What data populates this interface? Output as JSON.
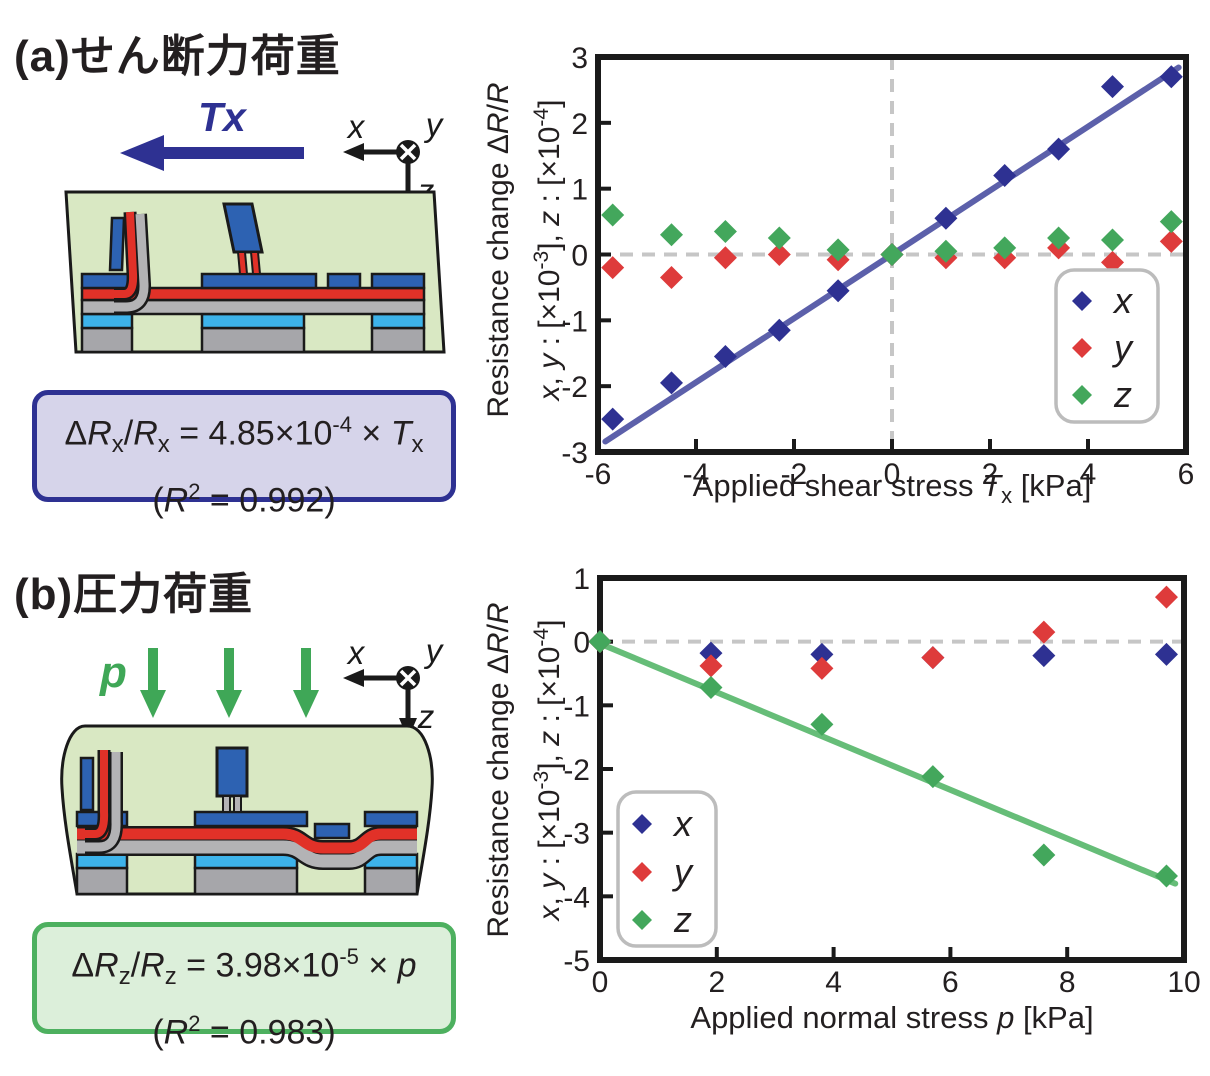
{
  "panel_a": {
    "title": "(a)せん断力荷重",
    "force_label": "Tx",
    "axis_widget": {
      "x": "x",
      "y": "y",
      "z": "z"
    },
    "equation_line1_html": "Δ<i>R</i><sub>x</sub>/<i>R</i><sub>x</sub> = 4.85×10<sup>-4</sup> × <i>T</i><sub>x</sub>",
    "equation_line2_html": "(<i>R</i><sup>2</sup> = 0.992)"
  },
  "panel_b": {
    "title": "(b)圧力荷重",
    "force_label": "p",
    "axis_widget": {
      "x": "x",
      "y": "y",
      "z": "z"
    },
    "equation_line1_html": "Δ<i>R</i><sub>z</sub>/<i>R</i><sub>z</sub> = 3.98×10<sup>-5</sup> × <i>p</i>",
    "equation_line2_html": "(<i>R</i><sup>2</sup> = 0.983)"
  },
  "colors": {
    "series_x": "#2e3192",
    "series_y": "#de3b3b",
    "series_z": "#43a75c",
    "fit_blue": "#5c60aa",
    "fit_green": "#66bd78",
    "grid_dash": "#c6c6c6",
    "frame": "#1a1a1a",
    "legend_border": "#bcbcbc",
    "box_a_fill": "#d6d4ea",
    "box_a_border": "#2e3192",
    "box_b_fill": "#dcefda",
    "box_b_border": "#4db05f",
    "arrow_blue": "#2e3192",
    "arrow_green": "#3fa757",
    "schematic_body": "#d9e8c3",
    "schematic_blue": "#2d62b2",
    "schematic_red": "#e13128",
    "schematic_gray_layer": "#b3b3b5",
    "schematic_cyan": "#3db3ea",
    "schematic_pillar": "#a6a6aa",
    "schematic_outline": "#1a1a1a"
  },
  "chart_data": [
    {
      "type": "scatter",
      "title": "",
      "xlabel_html": "Applied shear stress <i>T</i><sub>x</sub> [kPa]",
      "ylabel_line1_html": "Resistance change Δ<i>R</i>/<i>R</i>",
      "ylabel_line2_html": "<i>x</i>, <i>y</i> : [×10<sup>-3</sup>], <i>z</i> : [×10<sup>-4</sup>]",
      "xlim": [
        -6,
        6
      ],
      "ylim": [
        -3,
        3
      ],
      "xticks": [
        -6,
        -4,
        -2,
        0,
        2,
        4,
        6
      ],
      "yticks": [
        -3,
        -2,
        -1,
        0,
        1,
        2,
        3
      ],
      "zero_lines": [
        "h",
        "v"
      ],
      "grid": false,
      "legend_position": "right-middle",
      "x": [
        -5.7,
        -4.5,
        -3.4,
        -2.3,
        -1.1,
        0,
        1.1,
        2.3,
        3.4,
        4.5,
        5.7
      ],
      "series": [
        {
          "name": "x",
          "color_key": "series_x",
          "values": [
            -2.5,
            -1.95,
            -1.55,
            -1.15,
            -0.55,
            0,
            0.55,
            1.2,
            1.6,
            2.55,
            2.7
          ]
        },
        {
          "name": "y",
          "color_key": "series_y",
          "values": [
            -0.2,
            -0.35,
            -0.05,
            0,
            -0.08,
            0,
            -0.05,
            -0.05,
            0.1,
            -0.12,
            0.2
          ]
        },
        {
          "name": "z",
          "color_key": "series_z",
          "values": [
            0.6,
            0.3,
            0.35,
            0.25,
            0.07,
            0,
            0.05,
            0.1,
            0.25,
            0.22,
            0.5
          ]
        }
      ],
      "fit_line": {
        "color_key": "fit_blue",
        "x1": -5.85,
        "y1": -2.84,
        "x2": 5.85,
        "y2": 2.84
      },
      "legend_entries": [
        "x",
        "y",
        "z"
      ]
    },
    {
      "type": "scatter",
      "title": "",
      "xlabel_html": "Applied normal stress <i>p</i> [kPa]",
      "ylabel_line1_html": "Resistance change Δ<i>R</i>/<i>R</i>",
      "ylabel_line2_html": "<i>x</i>, <i>y</i> : [×10<sup>-3</sup>], <i>z</i> : [×10<sup>-4</sup>]",
      "xlim": [
        0,
        10
      ],
      "ylim": [
        -5,
        1
      ],
      "xticks": [
        0,
        2,
        4,
        6,
        8,
        10
      ],
      "yticks": [
        -5,
        -4,
        -3,
        -2,
        -1,
        0,
        1
      ],
      "zero_lines": [
        "h"
      ],
      "grid": false,
      "legend_position": "left-bottom",
      "x": [
        0,
        1.9,
        3.8,
        5.7,
        7.6,
        9.7
      ],
      "series": [
        {
          "name": "x",
          "color_key": "series_x",
          "values": [
            0,
            -0.18,
            -0.2,
            -0.25,
            -0.22,
            -0.2
          ]
        },
        {
          "name": "y",
          "color_key": "series_y",
          "values": [
            0,
            -0.38,
            -0.42,
            -0.25,
            0.15,
            0.7
          ]
        },
        {
          "name": "z",
          "color_key": "series_z",
          "values": [
            0,
            -0.72,
            -1.3,
            -2.12,
            -3.35,
            -3.68
          ]
        }
      ],
      "fit_line": {
        "color_key": "fit_green",
        "x1": 0.05,
        "y1": -0.05,
        "x2": 9.85,
        "y2": -3.8
      },
      "legend_entries": [
        "x",
        "y",
        "z"
      ]
    }
  ]
}
